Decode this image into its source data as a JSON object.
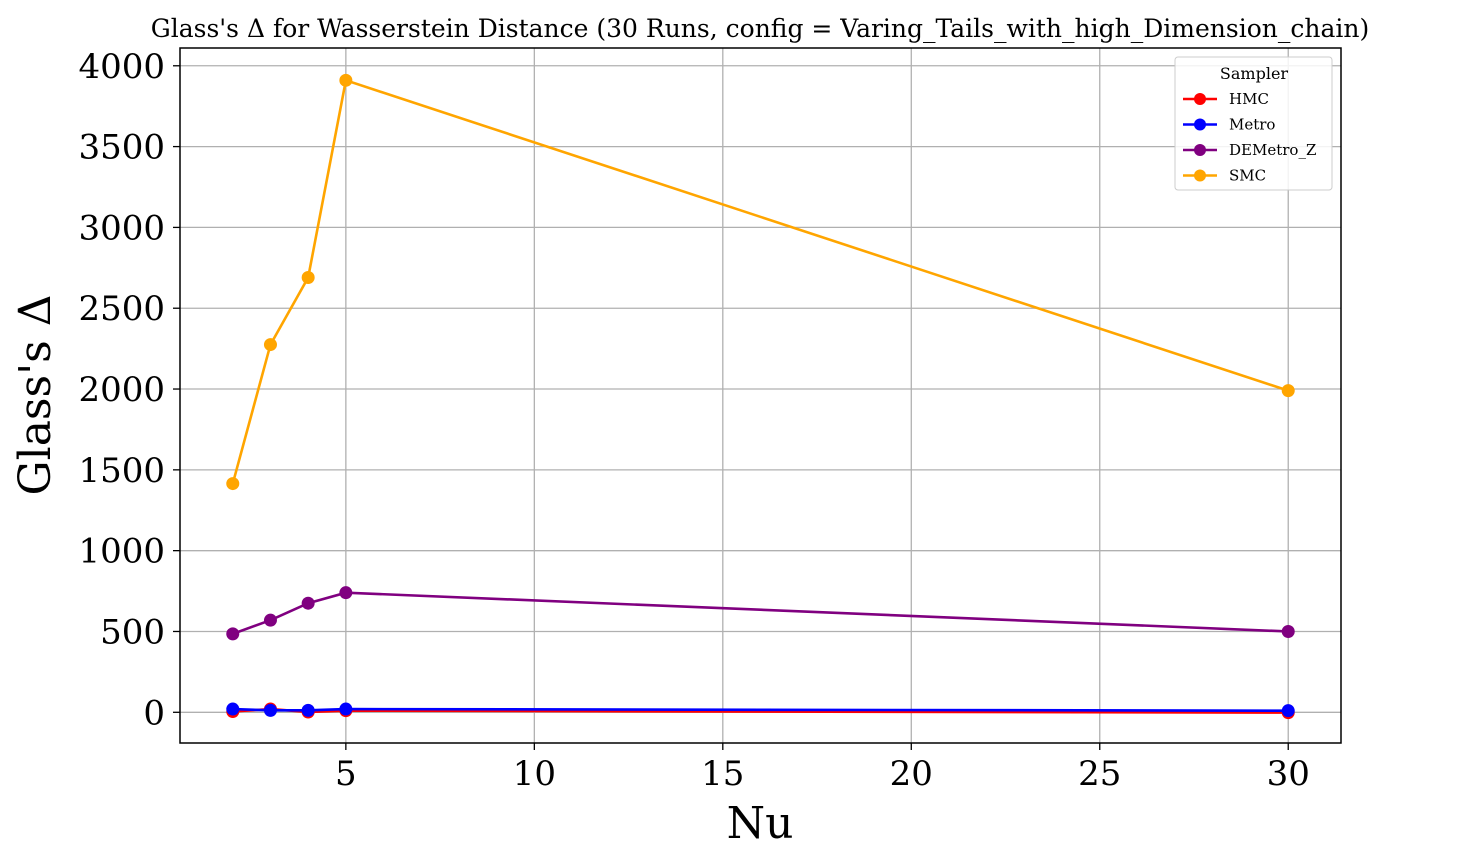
{
  "chart_data": {
    "type": "line",
    "title": "Glass's Δ for Wasserstein Distance (30 Runs, config = Varing_Tails_with_high_Dimension_chain)",
    "xlabel": "Nu",
    "ylabel": "Glass's Δ",
    "x": [
      2,
      3,
      4,
      5,
      30
    ],
    "xlim": [
      0.6,
      31.4
    ],
    "ylim": [
      -190,
      4110
    ],
    "xticks": [
      5,
      10,
      15,
      20,
      25,
      30
    ],
    "yticks": [
      0,
      500,
      1000,
      1500,
      2000,
      2500,
      3000,
      3500,
      4000
    ],
    "grid": true,
    "legend": {
      "title": "Sampler",
      "placement": "top-right"
    },
    "series": [
      {
        "name": "HMC",
        "color": "#ff0000",
        "values": [
          5,
          20,
          2,
          10,
          -2
        ]
      },
      {
        "name": "Metro",
        "color": "#0000ff",
        "values": [
          20,
          12,
          12,
          20,
          10
        ]
      },
      {
        "name": "DEMetro_Z",
        "color": "#800080",
        "values": [
          485,
          570,
          675,
          740,
          500
        ]
      },
      {
        "name": "SMC",
        "color": "#ffa500",
        "values": [
          1415,
          2275,
          2690,
          3910,
          1990
        ]
      }
    ]
  }
}
